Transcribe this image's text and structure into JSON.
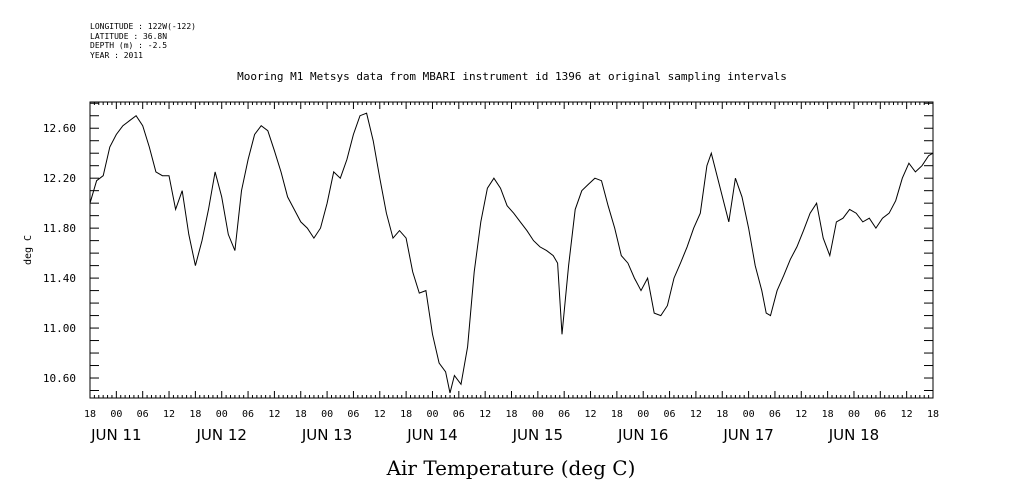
{
  "meta": {
    "longitude": "LONGITUDE : 122W(-122)",
    "latitude": "LATITUDE : 36.8N",
    "depth": "DEPTH (m) : -2.5",
    "year": "YEAR : 2011"
  },
  "chart_data": {
    "type": "line",
    "title": "Mooring M1 Metsys data from MBARI instrument id 1396 at original sampling intervals",
    "xlabel": "Air Temperature (deg C)",
    "ylabel": "deg C",
    "ylim": [
      10.44,
      12.81
    ],
    "yticks": [
      "10.60",
      "11.00",
      "11.40",
      "11.80",
      "12.20",
      "12.60"
    ],
    "hour_ticks": [
      "18",
      "00",
      "06",
      "12",
      "18",
      "00",
      "06",
      "12",
      "18",
      "00",
      "06",
      "12",
      "18",
      "00",
      "06",
      "12",
      "18",
      "00",
      "06",
      "12",
      "18",
      "00",
      "06",
      "12",
      "18",
      "00",
      "06",
      "12",
      "18",
      "00",
      "06",
      "12",
      "18"
    ],
    "day_labels": [
      "JUN 11",
      "JUN 12",
      "JUN 13",
      "JUN 14",
      "JUN 15",
      "JUN 16",
      "JUN 17",
      "JUN 18"
    ],
    "xrange_hours": [
      -6,
      186
    ],
    "grid": false,
    "series": [
      {
        "points": [
          [
            -6,
            12.0
          ],
          [
            -4.5,
            12.18
          ],
          [
            -3,
            12.22
          ],
          [
            -1.5,
            12.45
          ],
          [
            0,
            12.55
          ],
          [
            1.5,
            12.62
          ],
          [
            3,
            12.66
          ],
          [
            4.5,
            12.7
          ],
          [
            6,
            12.62
          ],
          [
            7.5,
            12.45
          ],
          [
            9,
            12.25
          ],
          [
            10.5,
            12.22
          ],
          [
            12,
            12.22
          ],
          [
            13.5,
            11.95
          ],
          [
            15,
            12.1
          ],
          [
            16.5,
            11.75
          ],
          [
            18,
            11.5
          ],
          [
            19.5,
            11.7
          ],
          [
            21,
            11.95
          ],
          [
            22.5,
            12.25
          ],
          [
            24,
            12.05
          ],
          [
            25.5,
            11.75
          ],
          [
            27,
            11.62
          ],
          [
            28.5,
            12.1
          ],
          [
            30,
            12.35
          ],
          [
            31.5,
            12.55
          ],
          [
            33,
            12.62
          ],
          [
            34.5,
            12.58
          ],
          [
            36,
            12.42
          ],
          [
            37.5,
            12.25
          ],
          [
            39,
            12.05
          ],
          [
            40.5,
            11.95
          ],
          [
            42,
            11.85
          ],
          [
            43.5,
            11.8
          ],
          [
            45,
            11.72
          ],
          [
            46.5,
            11.8
          ],
          [
            48,
            12.0
          ],
          [
            49.5,
            12.25
          ],
          [
            51,
            12.2
          ],
          [
            52.5,
            12.35
          ],
          [
            54,
            12.55
          ],
          [
            55.5,
            12.7
          ],
          [
            57,
            12.72
          ],
          [
            58.5,
            12.5
          ],
          [
            60,
            12.2
          ],
          [
            61.5,
            11.92
          ],
          [
            63,
            11.72
          ],
          [
            64.5,
            11.78
          ],
          [
            66,
            11.72
          ],
          [
            67.5,
            11.45
          ],
          [
            69,
            11.28
          ],
          [
            70.5,
            11.3
          ],
          [
            72,
            10.95
          ],
          [
            73.5,
            10.72
          ],
          [
            75,
            10.65
          ],
          [
            76,
            10.48
          ],
          [
            77,
            10.62
          ],
          [
            78.5,
            10.55
          ],
          [
            80,
            10.85
          ],
          [
            81.5,
            11.45
          ],
          [
            83,
            11.85
          ],
          [
            84.5,
            12.12
          ],
          [
            86,
            12.2
          ],
          [
            87.5,
            12.12
          ],
          [
            89,
            11.98
          ],
          [
            90.5,
            11.92
          ],
          [
            92,
            11.85
          ],
          [
            93.5,
            11.78
          ],
          [
            95,
            11.7
          ],
          [
            96.5,
            11.65
          ],
          [
            98,
            11.62
          ],
          [
            99.5,
            11.58
          ],
          [
            100.5,
            11.52
          ],
          [
            101.5,
            10.95
          ],
          [
            103,
            11.5
          ],
          [
            104.5,
            11.95
          ],
          [
            106,
            12.1
          ],
          [
            107.5,
            12.15
          ],
          [
            109,
            12.2
          ],
          [
            110.5,
            12.18
          ],
          [
            112,
            11.98
          ],
          [
            113.5,
            11.8
          ],
          [
            115,
            11.58
          ],
          [
            116.5,
            11.52
          ],
          [
            118,
            11.4
          ],
          [
            119.5,
            11.3
          ],
          [
            121,
            11.4
          ],
          [
            122.5,
            11.12
          ],
          [
            124,
            11.1
          ],
          [
            125.5,
            11.18
          ],
          [
            127,
            11.4
          ],
          [
            128.5,
            11.52
          ],
          [
            130,
            11.65
          ],
          [
            131.5,
            11.8
          ],
          [
            133,
            11.92
          ],
          [
            134.5,
            12.3
          ],
          [
            135.5,
            12.4
          ],
          [
            139.5,
            11.85
          ],
          [
            141,
            12.2
          ],
          [
            142.5,
            12.05
          ],
          [
            144,
            11.8
          ],
          [
            145.5,
            11.5
          ],
          [
            147,
            11.3
          ],
          [
            148,
            11.12
          ],
          [
            149,
            11.1
          ],
          [
            150.5,
            11.3
          ],
          [
            152,
            11.42
          ],
          [
            153.5,
            11.55
          ],
          [
            155,
            11.65
          ],
          [
            156.5,
            11.78
          ],
          [
            158,
            11.92
          ],
          [
            159.5,
            12.0
          ],
          [
            161,
            11.72
          ],
          [
            162.5,
            11.58
          ],
          [
            164,
            11.85
          ],
          [
            165.5,
            11.88
          ],
          [
            167,
            11.95
          ],
          [
            168.5,
            11.92
          ],
          [
            170,
            11.85
          ],
          [
            171.5,
            11.88
          ],
          [
            173,
            11.8
          ],
          [
            174.5,
            11.88
          ],
          [
            176,
            11.92
          ],
          [
            177.5,
            12.02
          ],
          [
            179,
            12.2
          ],
          [
            180.5,
            12.32
          ],
          [
            182,
            12.25
          ],
          [
            183.5,
            12.3
          ],
          [
            185,
            12.38
          ],
          [
            186,
            12.4
          ]
        ]
      }
    ]
  }
}
